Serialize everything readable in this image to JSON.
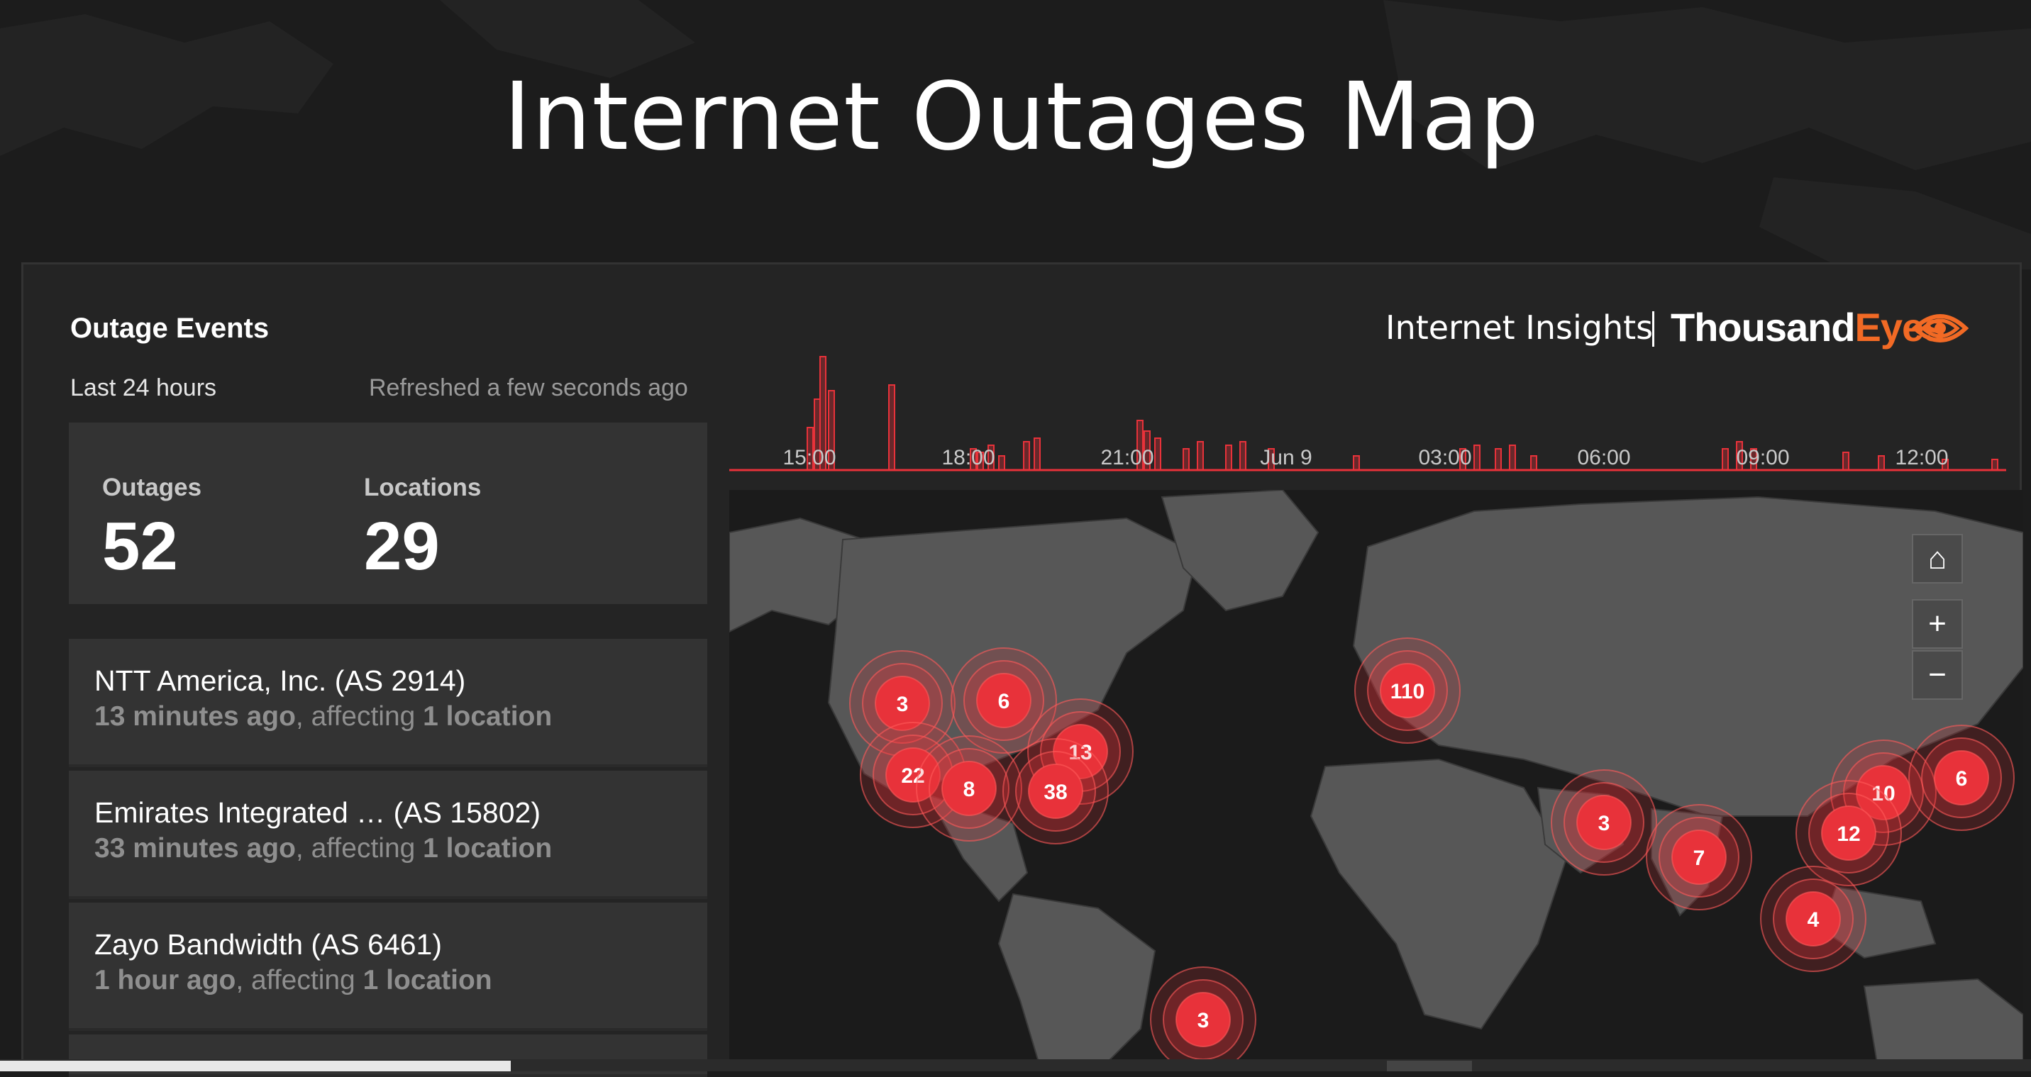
{
  "page": {
    "title": "Internet Outages Map"
  },
  "events": {
    "title": "Outage Events",
    "range": "Last 24 hours",
    "refreshed": "Refreshed a few seconds ago",
    "stats": {
      "outages_label": "Outages",
      "outages_value": "52",
      "locations_label": "Locations",
      "locations_value": "29"
    },
    "items": [
      {
        "name": "NTT America, Inc. (AS 2914)",
        "time": "13 minutes ago",
        "affecting": ", affecting ",
        "count": "1 location"
      },
      {
        "name": "Emirates Integrated … (AS 15802)",
        "time": "33 minutes ago",
        "affecting": ", affecting ",
        "count": "1 location"
      },
      {
        "name": "Zayo Bandwidth (AS 6461)",
        "time": "1 hour ago",
        "affecting": ", affecting ",
        "count": "1 location"
      }
    ]
  },
  "brand": {
    "insights": "Internet Insights",
    "logo_a": "Thousand",
    "logo_b": "Eyes"
  },
  "timeline": {
    "ticks": [
      "15:00",
      "18:00",
      "21:00",
      "Jun 9",
      "03:00",
      "06:00",
      "09:00",
      "12:00"
    ],
    "accent": "#e8323a"
  },
  "map": {
    "clusters": [
      "3",
      "6",
      "22",
      "8",
      "13",
      "38",
      "110",
      "3",
      "7",
      "10",
      "6",
      "12",
      "4",
      "3"
    ],
    "controls": {
      "home": "⌂",
      "zoom_in": "+",
      "zoom_out": "−"
    }
  }
}
